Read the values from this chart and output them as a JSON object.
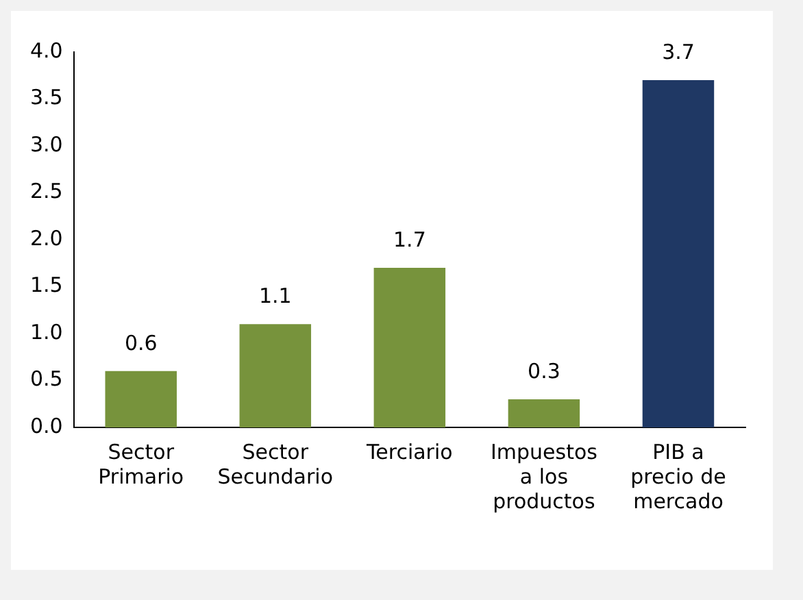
{
  "chart_data": {
    "type": "bar",
    "categories": [
      "Sector Primario",
      "Sector Secundario",
      "Terciario",
      "Impuestos a los productos",
      "PIB a precio de mercado"
    ],
    "values": [
      0.6,
      1.1,
      1.7,
      0.3,
      3.7
    ],
    "colors": [
      "#77933c",
      "#77933c",
      "#77933c",
      "#77933c",
      "#1f3864"
    ],
    "ylim": [
      0,
      4
    ],
    "yticks": [
      {
        "value": 0,
        "label": "0.0"
      },
      {
        "value": 0.5,
        "label": "0.5"
      },
      {
        "value": 1,
        "label": "1.0"
      },
      {
        "value": 1.5,
        "label": "1.5"
      },
      {
        "value": 2,
        "label": "2.0"
      },
      {
        "value": 2.5,
        "label": "2.5"
      },
      {
        "value": 3,
        "label": "3.0"
      },
      {
        "value": 3.5,
        "label": "3.5"
      },
      {
        "value": 4,
        "label": "4.0"
      }
    ],
    "grid": false,
    "legend": false,
    "data_labels": true
  }
}
